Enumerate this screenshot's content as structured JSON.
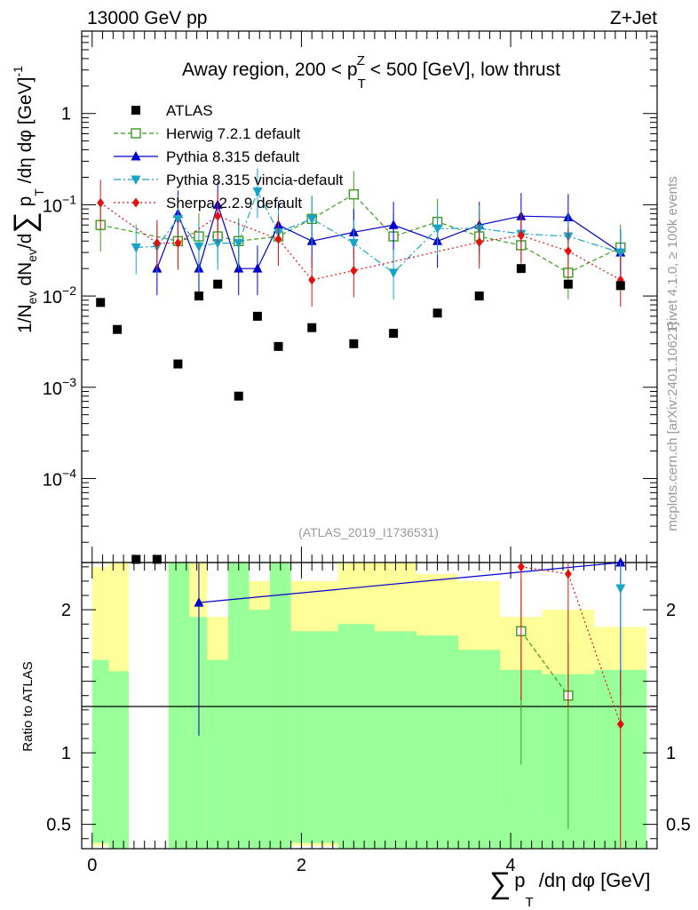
{
  "header": {
    "left_label": "13000 GeV pp",
    "right_label": "Z+Jet"
  },
  "side_labels": {
    "rivet": "Rivet 4.1.0, ≥ 100k events",
    "mcplots": "mcplots.cern.ch [arXiv:2401.10621]"
  },
  "chart_data": [
    {
      "type": "scatter",
      "panel": "main",
      "title": "Away region, 200 < p_T^Z < 500 [GeV], low thrust",
      "title_parts": {
        "before": "Away region, 200 < p",
        "sup": "Z",
        "sub": "T",
        "after": " < 500 [GeV], low thrust"
      },
      "watermark": "(ATLAS_2019_I1736531)",
      "ylabel": "1/N_ev dN_ev/d∑ p_T /dη dφ [GeV]^-1",
      "ylabel_parts": {
        "a": "1/N",
        "a_sub": "ev",
        "b": " dN",
        "b_sub": "ev",
        "c": "/d",
        "sum": "∑",
        "d": " p",
        "d_sub": "T",
        "e": " /dη dφ  [GeV]",
        "e_sup": "-1"
      },
      "yscale": "log",
      "ylim": [
        1.2e-05,
        8
      ],
      "xlim": [
        -0.1,
        5.4
      ],
      "ytick_labels": [
        {
          "value": 1,
          "label": "1"
        },
        {
          "value": 0.1,
          "base": "10",
          "exp": "−1"
        },
        {
          "value": 0.01,
          "base": "10",
          "exp": "−2"
        },
        {
          "value": 0.001,
          "base": "10",
          "exp": "−3"
        },
        {
          "value": 0.0001,
          "base": "10",
          "exp": "−4"
        }
      ],
      "series": [
        {
          "name": "ATLAS",
          "color": "#000000",
          "marker": "square-filled",
          "line": "none",
          "x": [
            0.08,
            0.24,
            0.42,
            0.62,
            0.82,
            1.02,
            1.2,
            1.4,
            1.58,
            1.78,
            2.1,
            2.5,
            2.88,
            3.3,
            3.7,
            4.1,
            4.55,
            5.05
          ],
          "y": [
            0.0085,
            0.0043,
            1.3e-05,
            1.3e-05,
            0.0018,
            0.01,
            0.0135,
            0.0008,
            0.006,
            0.0028,
            0.0045,
            0.003,
            0.0039,
            0.0065,
            0.01,
            0.02,
            0.0135,
            0.013
          ]
        },
        {
          "name": "Herwig 7.2.1 default",
          "color": "#3c9b1e",
          "marker": "square-open",
          "line": "dashed",
          "x": [
            0.08,
            0.82,
            1.02,
            1.2,
            1.4,
            1.78,
            2.1,
            2.5,
            2.88,
            3.3,
            3.7,
            4.1,
            4.55,
            5.05
          ],
          "y": [
            0.06,
            0.04,
            0.045,
            0.045,
            0.04,
            0.045,
            0.07,
            0.13,
            0.045,
            0.065,
            0.045,
            0.036,
            0.018,
            0.034
          ]
        },
        {
          "name": "Pythia 8.315 default",
          "color": "#0000cc",
          "marker": "triangle-up",
          "line": "solid",
          "x": [
            0.62,
            0.82,
            1.02,
            1.2,
            1.4,
            1.58,
            1.78,
            2.1,
            2.5,
            2.88,
            3.3,
            3.7,
            4.1,
            4.55,
            5.05
          ],
          "y": [
            0.02,
            0.08,
            0.02,
            0.1,
            0.02,
            0.02,
            0.06,
            0.04,
            0.05,
            0.06,
            0.04,
            0.06,
            0.075,
            0.073,
            0.03
          ]
        },
        {
          "name": "Pythia 8.315 vincia-default",
          "color": "#1aa3c8",
          "marker": "triangle-down",
          "line": "dashdot",
          "x": [
            0.42,
            0.62,
            0.82,
            1.02,
            1.2,
            1.4,
            1.58,
            1.78,
            2.1,
            2.5,
            2.88,
            3.3,
            3.7,
            4.1,
            4.55,
            5.05
          ],
          "y": [
            0.034,
            0.035,
            0.07,
            0.035,
            0.038,
            0.038,
            0.14,
            0.05,
            0.07,
            0.038,
            0.018,
            0.055,
            0.055,
            0.048,
            0.045,
            0.03
          ]
        },
        {
          "name": "Sherpa 2.2.9 default",
          "color": "#e4100e",
          "marker": "diamond",
          "line": "dotted",
          "x": [
            0.08,
            0.62,
            0.82,
            1.2,
            1.78,
            2.1,
            2.5,
            3.7,
            4.1,
            4.55,
            5.05
          ],
          "y": [
            0.105,
            0.038,
            0.038,
            0.075,
            0.042,
            0.015,
            0.019,
            0.039,
            0.046,
            0.031,
            0.015
          ]
        }
      ]
    },
    {
      "type": "ratio",
      "panel": "ratio",
      "ylabel": "Ratio to ATLAS",
      "ylim": [
        0.33,
        2.33
      ],
      "ytick_labels": [
        {
          "value": 0.5,
          "label": "0.5"
        },
        {
          "value": 1,
          "label": "1"
        },
        {
          "value": 2,
          "label": "2"
        }
      ],
      "xlabel": "∑ p_T /dη dφ [GeV]",
      "xlabel_parts": {
        "sum": "∑",
        "p": "p",
        "p_sub": "T",
        "rest": " /dη dφ [GeV]"
      },
      "xtick_labels": [
        {
          "value": 0,
          "label": "0"
        },
        {
          "value": 2,
          "label": "2"
        },
        {
          "value": 4,
          "label": "4"
        }
      ],
      "bands": {
        "bins": [
          [
            0.0,
            0.16
          ],
          [
            0.16,
            0.35
          ],
          [
            0.35,
            0.73
          ],
          [
            0.73,
            0.93
          ],
          [
            0.93,
            1.1
          ],
          [
            1.1,
            1.3
          ],
          [
            1.3,
            1.5
          ],
          [
            1.5,
            1.7
          ],
          [
            1.7,
            1.9
          ],
          [
            1.9,
            2.35
          ],
          [
            2.35,
            2.7
          ],
          [
            2.7,
            3.1
          ],
          [
            3.1,
            3.5
          ],
          [
            3.5,
            3.9
          ],
          [
            3.9,
            4.3
          ],
          [
            4.3,
            4.8
          ],
          [
            4.8,
            5.3
          ]
        ],
        "outer_color": "#ffff99",
        "inner_color": "#99ff99",
        "outer_lo": [
          0.35,
          0.33,
          1.0,
          0.33,
          0.33,
          0.42,
          0.33,
          0.33,
          0.33,
          0.35,
          0.33,
          0.33,
          0.42,
          0.33,
          0.67,
          0.54,
          0.65
        ],
        "outer_hi": [
          2.3,
          2.36,
          1.0,
          2.36,
          2.36,
          1.95,
          2.36,
          2.2,
          2.36,
          2.2,
          2.36,
          2.36,
          2.25,
          2.2,
          1.95,
          2.0,
          1.88
        ],
        "inner_lo": [
          0.37,
          0.33,
          1.0,
          0.33,
          0.33,
          0.33,
          0.33,
          0.33,
          0.33,
          0.37,
          0.33,
          0.33,
          0.33,
          0.33,
          0.33,
          0.33,
          0.33
        ],
        "inner_hi": [
          1.65,
          1.57,
          1.0,
          2.36,
          1.95,
          1.65,
          2.36,
          2.0,
          2.36,
          1.85,
          1.9,
          1.85,
          1.82,
          1.72,
          1.58,
          1.55,
          1.58
        ]
      },
      "series": [
        {
          "name": "Herwig 7.2.1 default",
          "x": [
            4.1,
            4.55
          ],
          "y": [
            1.85,
            1.4
          ]
        },
        {
          "name": "Pythia 8.315 default",
          "x": [
            1.02,
            5.05
          ],
          "y": [
            2.05,
            2.35
          ]
        },
        {
          "name": "Pythia 8.315 vincia-default",
          "x": [
            5.05
          ],
          "y": [
            2.15
          ]
        },
        {
          "name": "Sherpa 2.2.9 default",
          "x": [
            4.1,
            4.55,
            5.05
          ],
          "y": [
            2.3,
            2.25,
            1.2
          ]
        }
      ]
    }
  ]
}
